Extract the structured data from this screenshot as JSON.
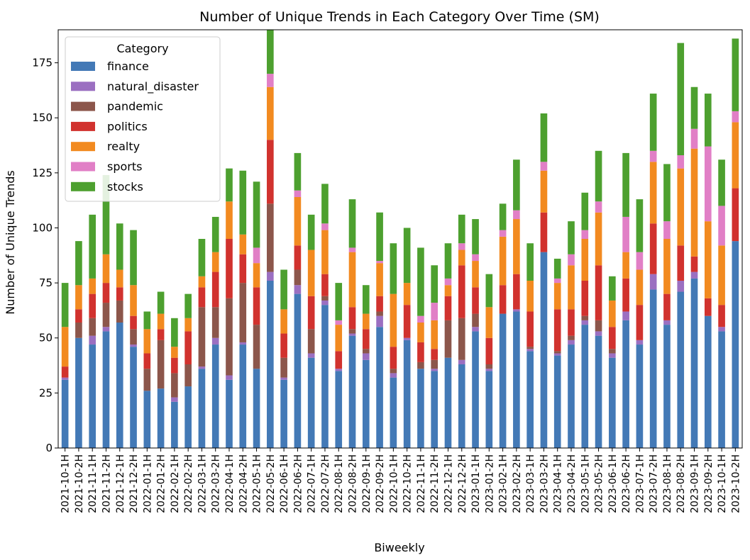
{
  "chart_data": {
    "type": "bar",
    "stacked": true,
    "title": "Number of Unique Trends in Each Category Over Time (SM)",
    "xlabel": "Biweekly",
    "ylabel": "Number of Unique Trends",
    "ylim": [
      0,
      190
    ],
    "yticks": [
      0,
      25,
      50,
      75,
      100,
      125,
      150,
      175
    ],
    "grid": false,
    "legend": {
      "title": "Category",
      "placement": "top-left"
    },
    "categories": [
      "2021-10-1H",
      "2021-10-2H",
      "2021-11-1H",
      "2021-11-2H",
      "2021-12-1H",
      "2021-12-2H",
      "2022-01-1H",
      "2022-01-2H",
      "2022-02-1H",
      "2022-02-2H",
      "2022-03-1H",
      "2022-03-2H",
      "2022-04-1H",
      "2022-04-2H",
      "2022-05-1H",
      "2022-05-2H",
      "2022-06-1H",
      "2022-06-2H",
      "2022-07-1H",
      "2022-07-2H",
      "2022-08-1H",
      "2022-08-2H",
      "2022-09-1H",
      "2022-09-2H",
      "2022-10-1H",
      "2022-10-2H",
      "2022-11-1H",
      "2022-11-2H",
      "2022-12-1H",
      "2022-12-2H",
      "2023-01-1H",
      "2023-01-2H",
      "2023-02-1H",
      "2023-02-2H",
      "2023-03-1H",
      "2023-03-2H",
      "2023-04-1H",
      "2023-04-2H",
      "2023-05-1H",
      "2023-05-2H",
      "2023-06-1H",
      "2023-06-2H",
      "2023-07-1H",
      "2023-07-2H",
      "2023-08-1H",
      "2023-08-2H",
      "2023-09-1H",
      "2023-09-2H",
      "2023-10-1H",
      "2023-10-2H"
    ],
    "series": [
      {
        "name": "finance",
        "color": "#4379b6",
        "values": [
          31,
          50,
          47,
          53,
          57,
          46,
          26,
          27,
          21,
          28,
          36,
          47,
          31,
          47,
          36,
          76,
          31,
          70,
          41,
          65,
          35,
          51,
          40,
          55,
          32,
          49,
          36,
          35,
          41,
          38,
          53,
          35,
          61,
          62,
          44,
          89,
          42,
          47,
          56,
          51,
          41,
          58,
          47,
          72,
          56,
          71,
          77,
          60,
          53,
          94
        ]
      },
      {
        "name": "natural_disaster",
        "color": "#9b6fc1",
        "values": [
          1,
          0,
          4,
          2,
          0,
          1,
          0,
          0,
          2,
          0,
          1,
          3,
          2,
          1,
          0,
          4,
          1,
          4,
          2,
          2,
          1,
          1,
          3,
          5,
          2,
          1,
          0,
          1,
          0,
          2,
          2,
          1,
          0,
          1,
          1,
          0,
          1,
          2,
          2,
          2,
          2,
          4,
          2,
          7,
          2,
          5,
          3,
          0,
          2,
          0
        ]
      },
      {
        "name": "pandemic",
        "color": "#8c564b",
        "values": [
          0,
          7,
          8,
          11,
          10,
          7,
          10,
          22,
          11,
          10,
          27,
          14,
          35,
          27,
          20,
          31,
          9,
          7,
          11,
          2,
          0,
          2,
          2,
          2,
          2,
          0,
          3,
          4,
          17,
          19,
          6,
          2,
          0,
          0,
          1,
          0,
          1,
          2,
          2,
          5,
          2,
          0,
          0,
          0,
          0,
          0,
          0,
          0,
          0,
          0
        ]
      },
      {
        "name": "politics",
        "color": "#d1322e",
        "values": [
          5,
          6,
          11,
          9,
          6,
          6,
          7,
          5,
          7,
          15,
          9,
          16,
          27,
          13,
          17,
          29,
          11,
          11,
          15,
          10,
          8,
          10,
          9,
          7,
          10,
          15,
          9,
          5,
          11,
          24,
          12,
          12,
          13,
          16,
          16,
          18,
          19,
          12,
          16,
          25,
          10,
          15,
          16,
          23,
          12,
          16,
          7,
          8,
          10,
          24
        ]
      },
      {
        "name": "realty",
        "color": "#f28a20",
        "values": [
          18,
          11,
          7,
          13,
          8,
          14,
          11,
          7,
          5,
          6,
          5,
          9,
          17,
          9,
          11,
          24,
          11,
          22,
          21,
          20,
          12,
          25,
          7,
          15,
          24,
          10,
          9,
          13,
          5,
          7,
          12,
          14,
          22,
          25,
          14,
          19,
          12,
          20,
          19,
          24,
          12,
          12,
          16,
          28,
          25,
          35,
          49,
          35,
          27,
          30
        ]
      },
      {
        "name": "sports",
        "color": "#e17fc6",
        "values": [
          0,
          0,
          0,
          0,
          0,
          0,
          0,
          0,
          0,
          0,
          0,
          0,
          0,
          0,
          7,
          6,
          0,
          3,
          0,
          3,
          2,
          2,
          0,
          1,
          0,
          0,
          3,
          8,
          3,
          3,
          3,
          0,
          3,
          4,
          0,
          4,
          2,
          5,
          4,
          5,
          0,
          16,
          8,
          5,
          8,
          6,
          9,
          34,
          18,
          5
        ]
      },
      {
        "name": "stocks",
        "color": "#4da02f",
        "values": [
          20,
          20,
          29,
          36,
          21,
          25,
          8,
          10,
          13,
          11,
          17,
          16,
          15,
          29,
          30,
          20,
          18,
          17,
          16,
          18,
          17,
          22,
          13,
          22,
          23,
          25,
          31,
          17,
          16,
          13,
          16,
          15,
          12,
          23,
          17,
          22,
          9,
          15,
          17,
          23,
          11,
          29,
          24,
          26,
          26,
          51,
          19,
          24,
          21,
          33
        ]
      }
    ]
  }
}
